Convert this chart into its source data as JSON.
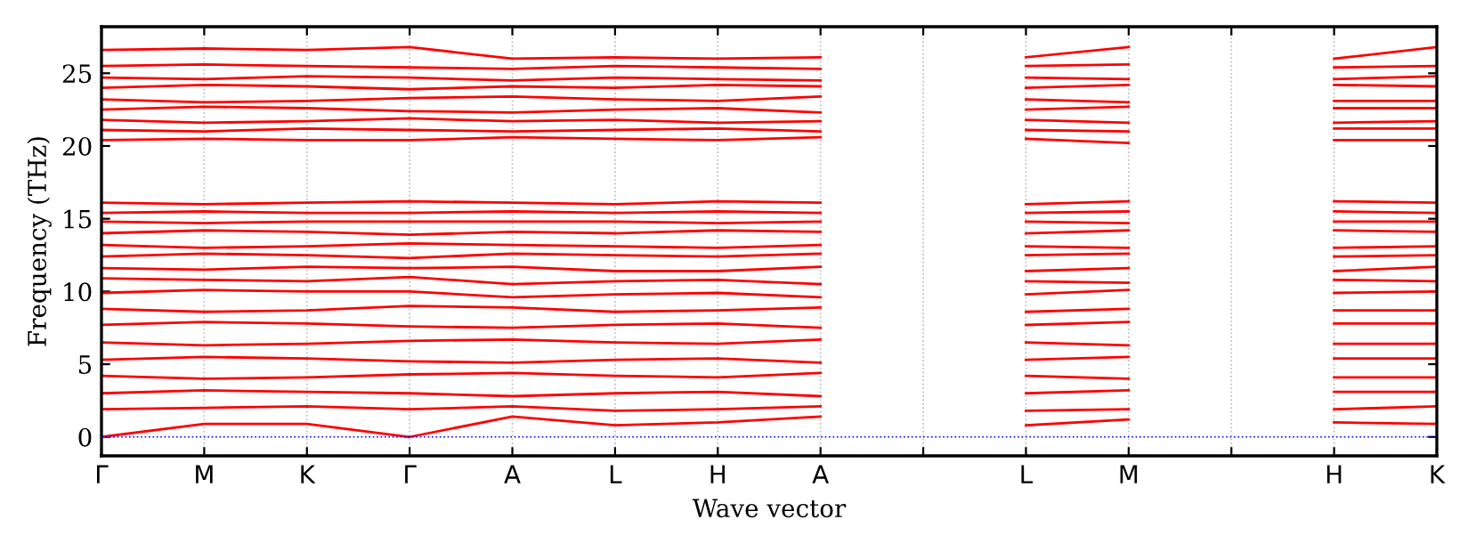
{
  "chart_data": {
    "type": "line",
    "ylabel": "Frequency (THz)",
    "xlabel": "Wave vector",
    "ylim": [
      -1.3,
      28.2
    ],
    "yticks": [
      0,
      5,
      10,
      15,
      20,
      25
    ],
    "categories": [
      "Γ",
      "M",
      "K",
      "Γ",
      "A",
      "L",
      "H",
      "A",
      null,
      "L",
      "M",
      null,
      "H",
      "K"
    ],
    "grid": "x",
    "marker": "none",
    "line_style": "solid",
    "ref_lines": [
      {
        "axis": "y",
        "value": 0,
        "color": "#0000ff",
        "line_style": "dotted"
      }
    ],
    "series": [
      {
        "color": "#ff0000",
        "values": [
          0,
          0.9,
          0.9,
          0,
          1.4,
          0.8,
          1.0,
          1.4,
          null,
          0.8,
          1.2,
          null,
          1.0,
          0.9
        ]
      },
      {
        "color": "#ff0000",
        "values": [
          1.9,
          2.0,
          2.1,
          1.9,
          2.1,
          1.8,
          1.9,
          2.1,
          null,
          1.8,
          1.9,
          null,
          1.9,
          2.1
        ]
      },
      {
        "color": "#ff0000",
        "values": [
          3.0,
          3.2,
          3.1,
          3.0,
          2.8,
          3.0,
          3.1,
          2.8,
          null,
          3.0,
          3.2,
          null,
          3.1,
          3.1
        ]
      },
      {
        "color": "#ff0000",
        "values": [
          4.2,
          4.0,
          4.1,
          4.3,
          4.4,
          4.2,
          4.1,
          4.4,
          null,
          4.2,
          4.0,
          null,
          4.1,
          4.1
        ]
      },
      {
        "color": "#ff0000",
        "values": [
          5.3,
          5.5,
          5.4,
          5.2,
          5.1,
          5.3,
          5.4,
          5.1,
          null,
          5.3,
          5.5,
          null,
          5.4,
          5.4
        ]
      },
      {
        "color": "#ff0000",
        "values": [
          6.5,
          6.3,
          6.4,
          6.6,
          6.7,
          6.5,
          6.4,
          6.7,
          null,
          6.5,
          6.3,
          null,
          6.4,
          6.4
        ]
      },
      {
        "color": "#ff0000",
        "values": [
          7.7,
          7.9,
          7.8,
          7.6,
          7.5,
          7.7,
          7.8,
          7.5,
          null,
          7.7,
          7.9,
          null,
          7.8,
          7.8
        ]
      },
      {
        "color": "#ff0000",
        "values": [
          8.8,
          8.6,
          8.7,
          9.0,
          8.9,
          8.6,
          8.7,
          8.9,
          null,
          8.6,
          8.8,
          null,
          8.7,
          8.7
        ]
      },
      {
        "color": "#ff0000",
        "values": [
          9.9,
          10.1,
          10.0,
          10.0,
          9.6,
          9.8,
          9.9,
          9.6,
          null,
          9.8,
          10.1,
          null,
          9.9,
          10.0
        ]
      },
      {
        "color": "#ff0000",
        "values": [
          10.9,
          10.8,
          10.7,
          11.0,
          10.5,
          10.7,
          10.8,
          10.5,
          null,
          10.7,
          10.6,
          null,
          10.8,
          10.7
        ]
      },
      {
        "color": "#ff0000",
        "values": [
          11.6,
          11.5,
          11.7,
          11.6,
          11.7,
          11.4,
          11.4,
          11.7,
          null,
          11.4,
          11.6,
          null,
          11.4,
          11.7
        ]
      },
      {
        "color": "#ff0000",
        "values": [
          12.4,
          12.6,
          12.5,
          12.3,
          12.6,
          12.5,
          12.4,
          12.6,
          null,
          12.5,
          12.6,
          null,
          12.4,
          12.5
        ]
      },
      {
        "color": "#ff0000",
        "values": [
          13.2,
          13.0,
          13.1,
          13.3,
          13.2,
          13.1,
          13.0,
          13.2,
          null,
          13.1,
          13.0,
          null,
          13.0,
          13.1
        ]
      },
      {
        "color": "#ff0000",
        "values": [
          14.0,
          14.2,
          14.1,
          13.9,
          14.1,
          14.0,
          14.2,
          14.1,
          null,
          14.0,
          14.2,
          null,
          14.2,
          14.1
        ]
      },
      {
        "color": "#ff0000",
        "values": [
          14.8,
          14.7,
          14.8,
          14.8,
          14.8,
          14.8,
          14.7,
          14.8,
          null,
          14.8,
          14.7,
          null,
          14.8,
          14.8
        ]
      },
      {
        "color": "#ff0000",
        "values": [
          15.4,
          15.5,
          15.4,
          15.4,
          15.5,
          15.4,
          15.5,
          15.4,
          null,
          15.4,
          15.5,
          null,
          15.5,
          15.4
        ]
      },
      {
        "color": "#ff0000",
        "values": [
          16.1,
          16.0,
          16.1,
          16.2,
          16.1,
          16.0,
          16.2,
          16.1,
          null,
          16.0,
          16.2,
          null,
          16.2,
          16.1
        ]
      },
      {
        "color": "#ff0000",
        "values": [
          20.4,
          20.5,
          20.4,
          20.4,
          20.6,
          20.5,
          20.4,
          20.6,
          null,
          20.5,
          20.2,
          null,
          20.4,
          20.4
        ]
      },
      {
        "color": "#ff0000",
        "values": [
          21.1,
          21.0,
          21.2,
          21.1,
          21.0,
          21.1,
          21.2,
          21.0,
          null,
          21.1,
          21.0,
          null,
          21.2,
          21.2
        ]
      },
      {
        "color": "#ff0000",
        "values": [
          21.8,
          21.6,
          21.7,
          21.9,
          21.7,
          21.8,
          21.6,
          21.7,
          null,
          21.8,
          21.6,
          null,
          21.6,
          21.7
        ]
      },
      {
        "color": "#ff0000",
        "values": [
          22.5,
          22.7,
          22.6,
          22.4,
          22.3,
          22.5,
          22.6,
          22.3,
          null,
          22.5,
          22.7,
          null,
          22.6,
          22.6
        ]
      },
      {
        "color": "#ff0000",
        "values": [
          23.2,
          23.0,
          23.1,
          23.3,
          23.4,
          23.2,
          23.1,
          23.4,
          null,
          23.2,
          23.0,
          null,
          23.1,
          23.1
        ]
      },
      {
        "color": "#ff0000",
        "values": [
          24.0,
          24.2,
          24.1,
          23.9,
          24.1,
          24.0,
          24.2,
          24.1,
          null,
          24.0,
          24.2,
          null,
          24.2,
          24.1
        ]
      },
      {
        "color": "#ff0000",
        "values": [
          24.7,
          24.6,
          24.8,
          24.7,
          24.5,
          24.7,
          24.6,
          24.5,
          null,
          24.7,
          24.6,
          null,
          24.6,
          24.8
        ]
      },
      {
        "color": "#ff0000",
        "values": [
          25.5,
          25.6,
          25.5,
          25.4,
          25.3,
          25.5,
          25.4,
          25.3,
          null,
          25.5,
          25.6,
          null,
          25.4,
          25.5
        ]
      },
      {
        "color": "#ff0000",
        "values": [
          26.6,
          26.7,
          26.6,
          26.8,
          26.0,
          26.1,
          26.0,
          26.1,
          null,
          26.1,
          26.8,
          null,
          26.0,
          26.8
        ]
      }
    ]
  }
}
